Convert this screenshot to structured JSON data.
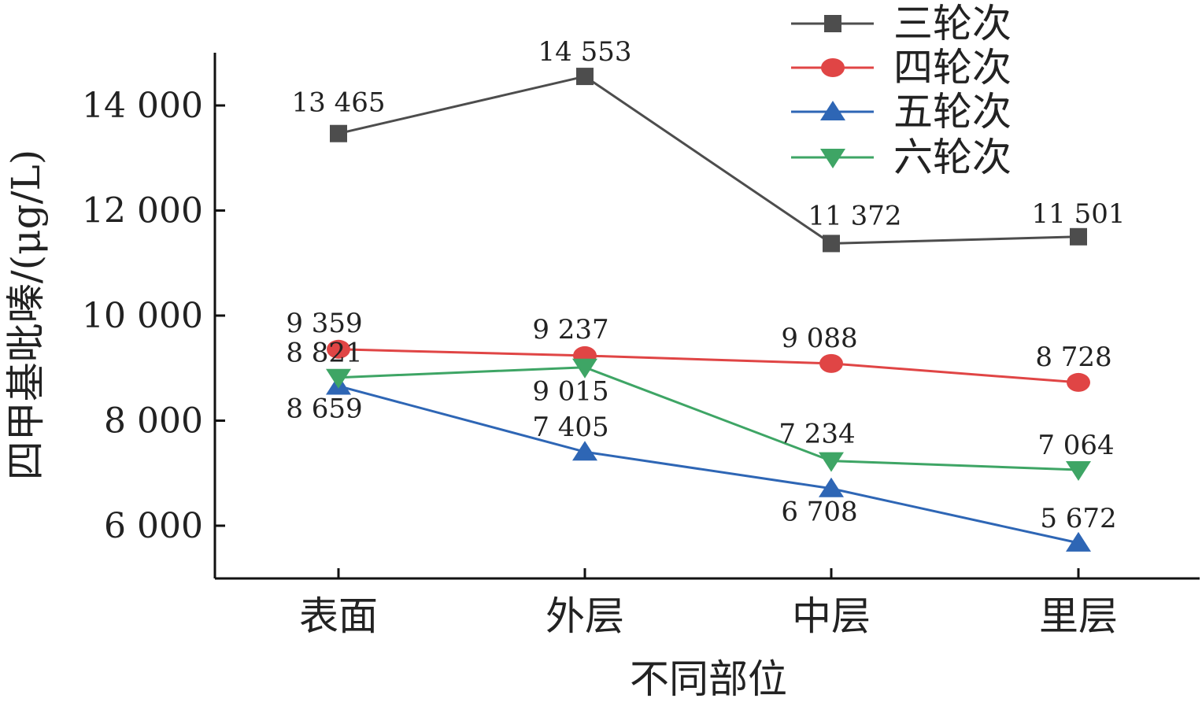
{
  "chart_data": {
    "type": "line",
    "title": "",
    "xlabel": "不同部位",
    "ylabel": "四甲基吡嗪/(μg/L)",
    "categories": [
      "表面",
      "外层",
      "中层",
      "里层"
    ],
    "ylim": [
      5000,
      15000
    ],
    "yticks": [
      6000,
      8000,
      10000,
      12000,
      14000
    ],
    "ytick_labels": [
      "6 000",
      "8 000",
      "10 000",
      "12 000",
      "14 000"
    ],
    "grid": false,
    "legend_position": "top-right",
    "series": [
      {
        "name": "三轮次",
        "marker": "square",
        "color": "#4d4d4d",
        "values": [
          13465,
          14553,
          11372,
          11501
        ],
        "labels": [
          "13 465",
          "14 553",
          "11 372",
          "11 501"
        ]
      },
      {
        "name": "四轮次",
        "marker": "circle",
        "color": "#e04545",
        "values": [
          9359,
          9237,
          9088,
          8728
        ],
        "labels": [
          "9 359",
          "9 237",
          "9 088",
          "8 728"
        ]
      },
      {
        "name": "五轮次",
        "marker": "triangle-up",
        "color": "#2e66b5",
        "values": [
          8659,
          7405,
          6708,
          5672
        ],
        "labels": [
          "8 659",
          "7 405",
          "6 708",
          "5 672"
        ]
      },
      {
        "name": "六轮次",
        "marker": "triangle-down",
        "color": "#3ea565",
        "values": [
          8821,
          9015,
          7234,
          7064
        ],
        "labels": [
          "8 821",
          "9 015",
          "7 234",
          "7 064"
        ]
      }
    ]
  }
}
